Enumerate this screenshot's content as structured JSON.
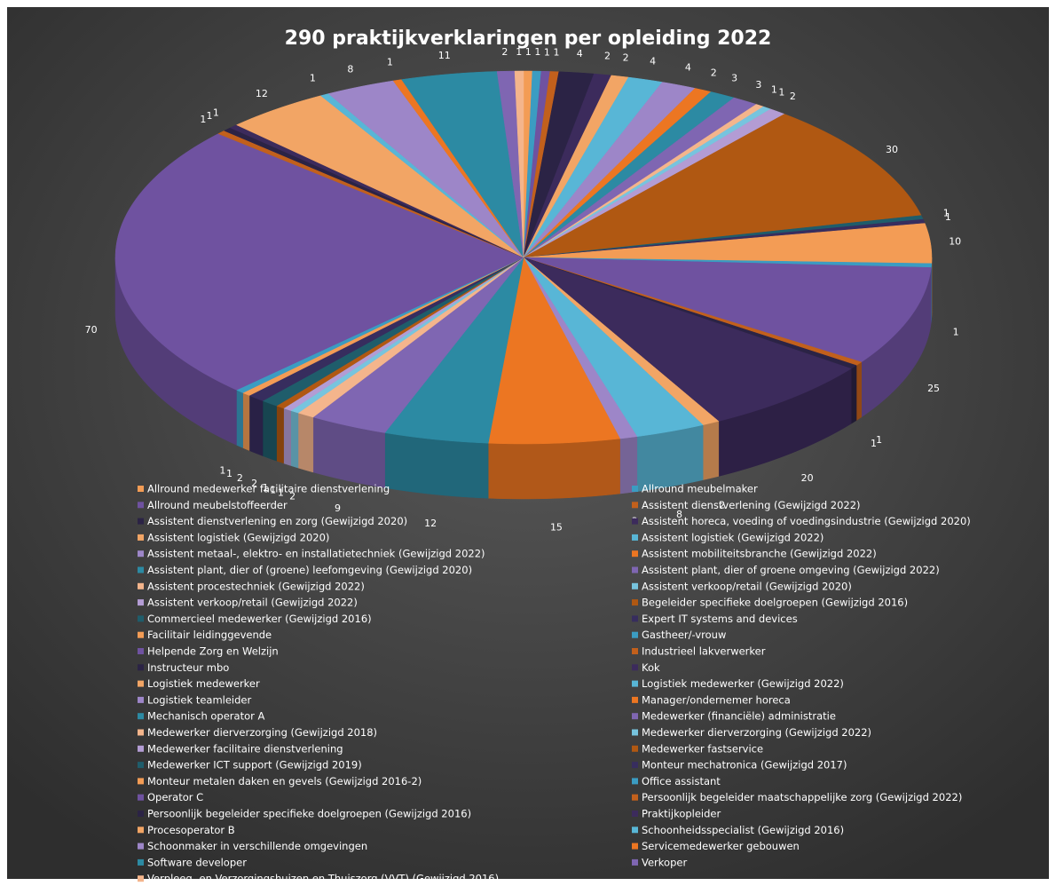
{
  "chart_data": {
    "type": "pie3d",
    "title": "290 praktijkverklaringen per opleiding 2022",
    "categories": [
      "Allround medewerker facilitaire dienstverlening",
      "Allround meubelmaker",
      "Allround meubelstoffeerder",
      "Assistent dienstverlening (Gewijzigd 2022)",
      "Assistent dienstverlening en zorg (Gewijzigd 2020)",
      "Assistent horeca, voeding of voedingsindustrie (Gewijzigd 2020)",
      "Assistent logistiek (Gewijzigd 2020)",
      "Assistent logistiek (Gewijzigd 2022)",
      "Assistent metaal-, elektro- en installatietechniek (Gewijzigd 2022)",
      "Assistent mobiliteitsbranche (Gewijzigd 2022)",
      "Assistent plant, dier of (groene) leefomgeving (Gewijzigd 2020)",
      "Assistent plant, dier of groene omgeving (Gewijzigd 2022)",
      "Assistent procestechniek (Gewijzigd 2022)",
      "Assistent verkoop/retail (Gewijzigd 2020)",
      "Assistent verkoop/retail (Gewijzigd 2022)",
      "Begeleider specifieke doelgroepen (Gewijzigd 2016)",
      "Commercieel medewerker (Gewijzigd 2016)",
      "Expert IT systems and devices",
      "Facilitair leidinggevende",
      "Gastheer/-vrouw",
      "Helpende Zorg en Welzijn",
      "Industrieel lakverwerker",
      "Instructeur mbo",
      "Kok",
      "Logistiek medewerker",
      "Logistiek medewerker (Gewijzigd 2022)",
      "Logistiek teamleider",
      "Manager/ondernemer horeca",
      "Mechanisch operator A",
      "Medewerker (financiële) administratie",
      "Medewerker dierverzorging (Gewijzigd 2018)",
      "Medewerker dierverzorging (Gewijzigd 2022)",
      "Medewerker facilitaire dienstverlening",
      "Medewerker fastservice",
      "Medewerker ICT support (Gewijzigd 2019)",
      "Monteur mechatronica (Gewijzigd 2017)",
      "Monteur metalen daken en gevels (Gewijzigd 2016-2)",
      "Office assistant",
      "Operator C",
      "Persoonlijk begeleider maatschappelijke zorg (Gewijzigd 2022)",
      "Persoonlijk begeleider specifieke doelgroepen (Gewijzigd 2016)",
      "Praktijkopleider",
      "Procesoperator B",
      "Schoonheidsspecialist (Gewijzigd 2016)",
      "Schoonmaker in verschillende omgevingen",
      "Servicemedewerker gebouwen",
      "Software developer",
      "Verkoper",
      "Verpleeg- en Verzorgingshuizen en Thuiszorg (VVT) (Gewijzigd 2016)"
    ],
    "values": [
      1,
      1,
      1,
      1,
      4,
      2,
      2,
      4,
      4,
      2,
      3,
      3,
      1,
      1,
      2,
      30,
      1,
      1,
      10,
      1,
      25,
      1,
      1,
      20,
      2,
      8,
      2,
      15,
      12,
      9,
      2,
      1,
      1,
      1,
      2,
      2,
      1,
      1,
      70,
      1,
      1,
      1,
      12,
      1,
      8,
      1,
      11,
      2,
      1
    ],
    "colors": [
      "#f39c55",
      "#3b9cc2",
      "#6f52a0",
      "#c2601c",
      "#2b2345",
      "#3c2b5c",
      "#f2a565",
      "#58b6d6",
      "#9d86c8",
      "#ec7622",
      "#2c8aa3",
      "#7f66b2",
      "#f4b58c",
      "#77c4de",
      "#b39cd4",
      "#b05812",
      "#1f5d6b",
      "#372d5e"
    ]
  }
}
